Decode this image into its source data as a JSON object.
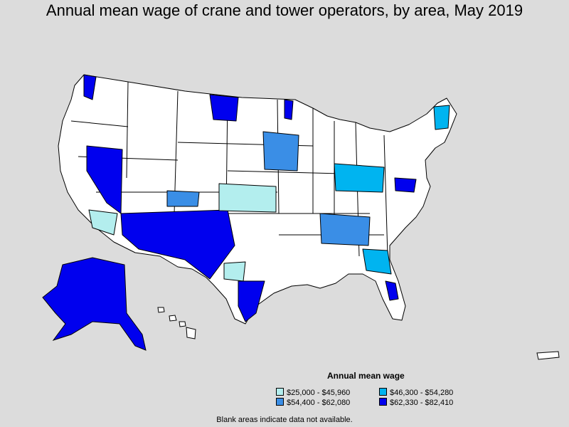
{
  "title": "Annual mean wage of crane and tower operators, by area, May 2019",
  "legend": {
    "title": "Annual mean wage",
    "items": [
      {
        "label": "$25,000 - $45,960",
        "color": "#b3eeee"
      },
      {
        "label": "$46,300 - $54,280",
        "color": "#00b4f0"
      },
      {
        "label": "$54,400 - $62,080",
        "color": "#3a8ee6"
      },
      {
        "label": "$62,330 - $82,410",
        "color": "#0000ee"
      }
    ]
  },
  "footnote": "Blank areas indicate data not available.",
  "colors": {
    "background": "#dcdcdc",
    "no_data": "#ffffff",
    "outline": "#000000"
  }
}
